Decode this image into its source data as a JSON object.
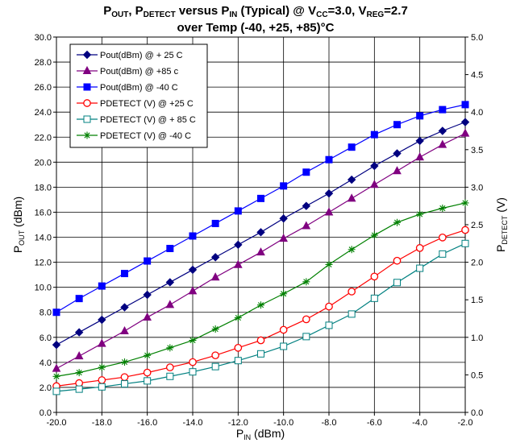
{
  "chart_data": {
    "type": "line",
    "title": {
      "line1": [
        {
          "text": "P"
        },
        {
          "text": "OUT",
          "sub": true
        },
        {
          "text": ", P"
        },
        {
          "text": "DETECT",
          "sub": true
        },
        {
          "text": " versus P"
        },
        {
          "text": "IN",
          "sub": true
        },
        {
          "text": " (Typical) @ V"
        },
        {
          "text": "CC",
          "sub": true
        },
        {
          "text": "=3.0, V"
        },
        {
          "text": "REG",
          "sub": true
        },
        {
          "text": "=2.7"
        }
      ],
      "line2": "over Temp (-40, +25, +85)°C"
    },
    "xlabel": {
      "main": "P",
      "sub": "IN",
      "rest": " (dBm)"
    },
    "ylabel_left": {
      "main": "P",
      "sub": "OUT",
      "rest": " (dBm)"
    },
    "ylabel_right": {
      "main": "P",
      "sub": "DETECT",
      "rest": " (V)"
    },
    "xlim": [
      -20,
      -2
    ],
    "ylim_left": [
      0,
      30
    ],
    "ylim_right": [
      0,
      5
    ],
    "x_ticks": [
      "-20.0",
      "-18.0",
      "-16.0",
      "-14.0",
      "-12.0",
      "-10.0",
      "-8.0",
      "-6.0",
      "-4.0",
      "-2.0"
    ],
    "y_left_ticks": [
      "0.0",
      "2.0",
      "4.0",
      "6.0",
      "8.0",
      "10.0",
      "12.0",
      "14.0",
      "16.0",
      "18.0",
      "20.0",
      "22.0",
      "24.0",
      "26.0",
      "28.0",
      "30.0"
    ],
    "y_right_ticks": [
      "0.0",
      "0.5",
      "1.0",
      "1.5",
      "2.0",
      "2.5",
      "3.0",
      "3.5",
      "4.0",
      "4.5",
      "5.0"
    ],
    "grid": true,
    "legend_position": "top-left",
    "x": [
      -20,
      -19,
      -18,
      -17,
      -16,
      -15,
      -14,
      -13,
      -12,
      -11,
      -10,
      -9,
      -8,
      -7,
      -6,
      -5,
      -4,
      -3,
      -2
    ],
    "series": [
      {
        "name": "Pout(dBm) @ + 25 C",
        "axis": "left",
        "color": "#000080",
        "marker": "diamond",
        "filled": true,
        "values": [
          5.4,
          6.4,
          7.4,
          8.4,
          9.4,
          10.4,
          11.4,
          12.4,
          13.4,
          14.4,
          15.5,
          16.5,
          17.5,
          18.6,
          19.7,
          20.7,
          21.7,
          22.5,
          23.2
        ]
      },
      {
        "name": "Pout(dBm) @ +85 c",
        "axis": "left",
        "color": "#800080",
        "marker": "triangle",
        "filled": true,
        "values": [
          3.5,
          4.5,
          5.5,
          6.5,
          7.6,
          8.6,
          9.7,
          10.8,
          11.8,
          12.8,
          13.9,
          14.9,
          16.0,
          17.1,
          18.2,
          19.3,
          20.4,
          21.4,
          22.3
        ]
      },
      {
        "name": "Pout(dBm) @ -40 C",
        "axis": "left",
        "color": "#0000ff",
        "marker": "square",
        "filled": true,
        "values": [
          8.0,
          9.1,
          10.1,
          11.1,
          12.1,
          13.1,
          14.1,
          15.1,
          16.1,
          17.1,
          18.1,
          19.2,
          20.2,
          21.2,
          22.2,
          23.0,
          23.7,
          24.2,
          24.6
        ]
      },
      {
        "name": "PDETECT (V) @ +25 C",
        "axis": "right",
        "color": "#ff0000",
        "marker": "circle",
        "filled": false,
        "values": [
          0.35,
          0.39,
          0.43,
          0.47,
          0.53,
          0.6,
          0.67,
          0.76,
          0.86,
          0.96,
          1.1,
          1.24,
          1.41,
          1.61,
          1.81,
          2.02,
          2.19,
          2.33,
          2.43
        ]
      },
      {
        "name": "PDETECT (V) @ + 85 C",
        "axis": "right",
        "color": "#008080",
        "marker": "square-open",
        "filled": false,
        "values": [
          0.28,
          0.31,
          0.34,
          0.38,
          0.42,
          0.48,
          0.54,
          0.61,
          0.69,
          0.78,
          0.88,
          1.01,
          1.16,
          1.31,
          1.52,
          1.73,
          1.92,
          2.11,
          2.25
        ]
      },
      {
        "name": "PDETECT (V) @ -40 C",
        "axis": "right",
        "color": "#008000",
        "marker": "star",
        "filled": false,
        "values": [
          0.48,
          0.53,
          0.6,
          0.67,
          0.76,
          0.86,
          0.96,
          1.11,
          1.26,
          1.43,
          1.58,
          1.74,
          1.97,
          2.17,
          2.36,
          2.53,
          2.64,
          2.72,
          2.79
        ]
      }
    ]
  }
}
